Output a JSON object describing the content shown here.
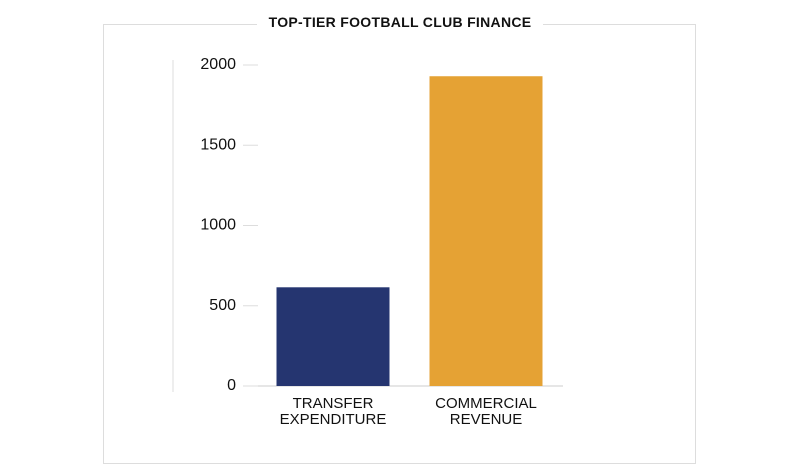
{
  "chart_data": {
    "type": "bar",
    "title": "TOP-TIER FOOTBALL CLUB FINANCE",
    "categories": [
      "TRANSFER EXPENDITURE",
      "COMMERCIAL REVENUE"
    ],
    "series": [
      {
        "colors": [
          "#253570",
          "#e5a234"
        ],
        "values": [
          615,
          1930
        ]
      }
    ],
    "ylim": [
      0,
      2000
    ],
    "yticks": [
      0,
      500,
      1000,
      1500,
      2000
    ],
    "grid": false
  }
}
